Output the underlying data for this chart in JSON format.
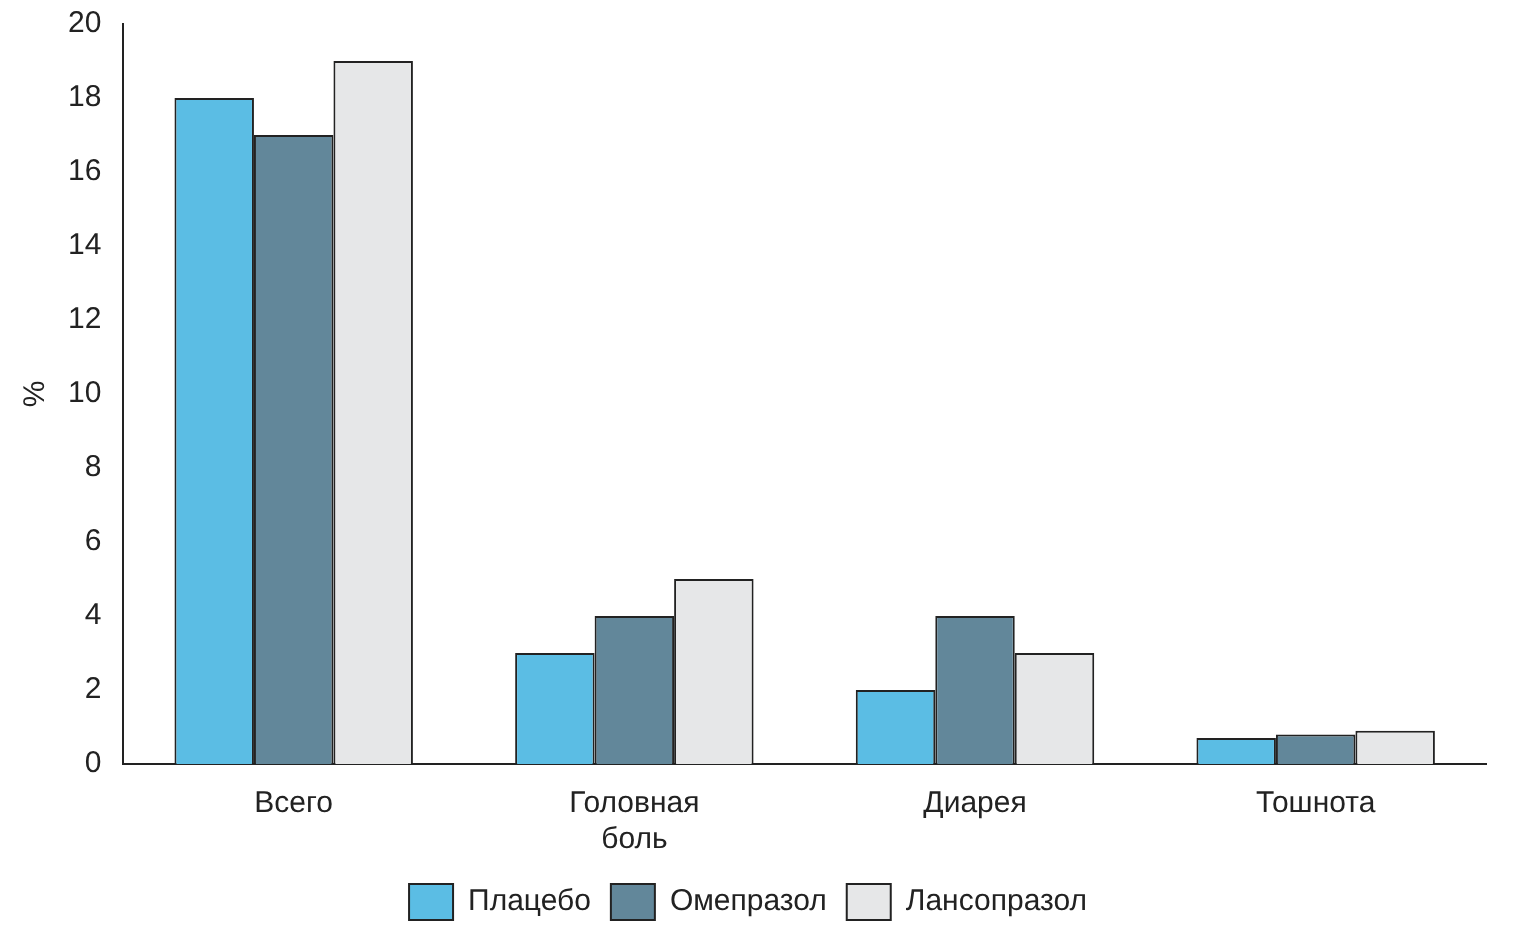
{
  "chart_data": {
    "type": "bar",
    "ylabel": "%",
    "categories": [
      "Всего",
      "Головная боль",
      "Диарея",
      "Тошнота"
    ],
    "series": [
      {
        "name": "Плацебо",
        "color": "#5bbde4",
        "values": [
          18,
          3,
          2,
          0.7
        ]
      },
      {
        "name": "Омепразол",
        "color": "#62879a",
        "values": [
          17,
          4,
          4,
          0.8
        ]
      },
      {
        "name": "Лансопразол",
        "color": "#e6e7e8",
        "values": [
          19,
          5,
          3,
          0.9
        ]
      }
    ],
    "ylim": [
      0,
      20
    ],
    "yticks": [
      0,
      2,
      4,
      6,
      8,
      10,
      12,
      14,
      16,
      18,
      20
    ],
    "grid": false,
    "legend": "bottom"
  }
}
